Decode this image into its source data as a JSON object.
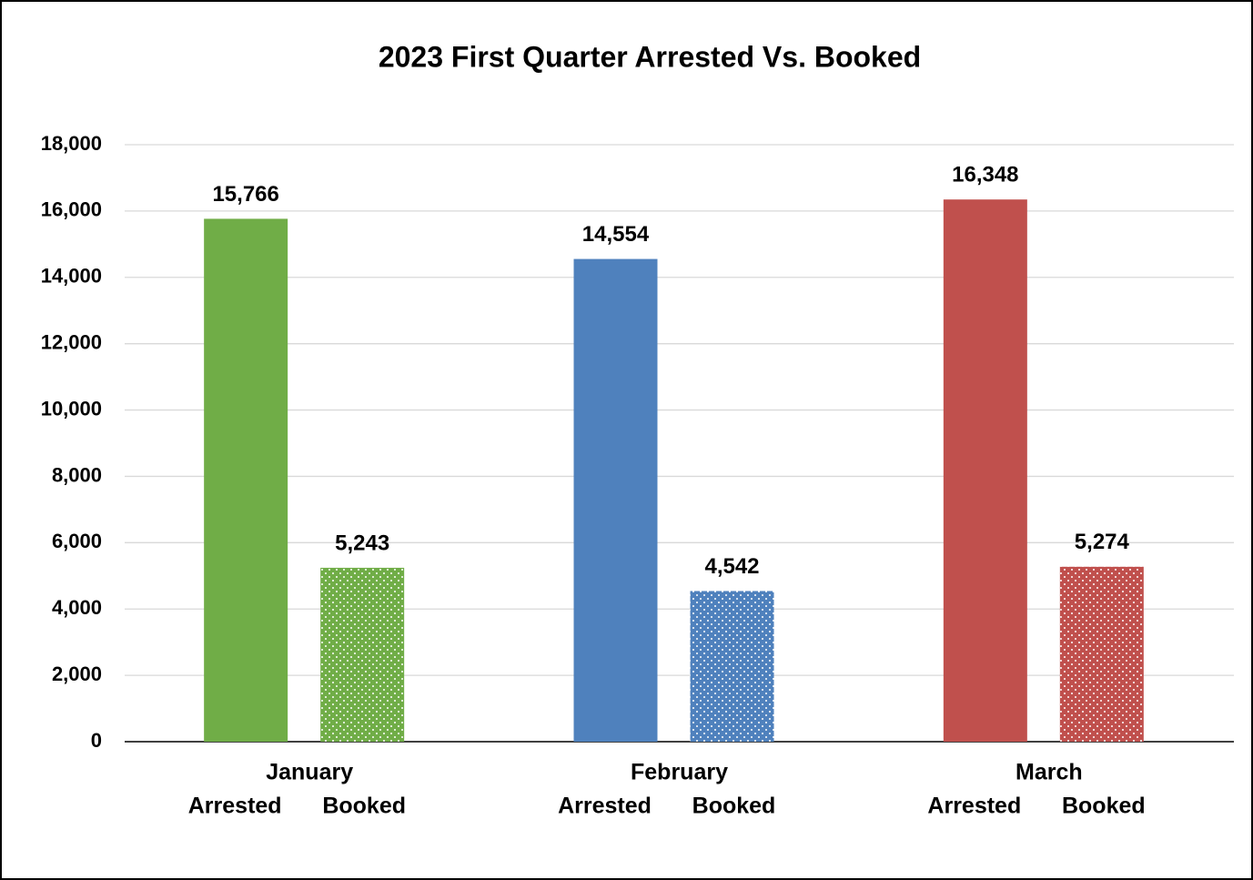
{
  "chart_data": {
    "type": "bar",
    "title": "2023 First Quarter Arrested Vs. Booked",
    "categories": [
      "January",
      "February",
      "March"
    ],
    "colors": [
      "#70ad47",
      "#4f81bd",
      "#c0504d"
    ],
    "series": [
      {
        "name": "Arrested",
        "pattern": "solid",
        "values": [
          15766,
          14554,
          16348
        ],
        "value_labels": [
          "15,766",
          "14,554",
          "16,348"
        ]
      },
      {
        "name": "Booked",
        "pattern": "dotted",
        "values": [
          5243,
          4542,
          5274
        ],
        "value_labels": [
          "5,243",
          "4,542",
          "5,274"
        ]
      }
    ],
    "ylim": [
      0,
      18000
    ],
    "yticks": [
      0,
      {
        "value": 2000,
        "label": "2,000"
      },
      {
        "value": 4000,
        "label": "4,000"
      },
      {
        "value": 6000,
        "label": "6,000"
      },
      {
        "value": 8000,
        "label": "8,000"
      },
      {
        "value": 10000,
        "label": "10,000"
      },
      {
        "value": 12000,
        "label": "12,000"
      },
      {
        "value": 14000,
        "label": "14,000"
      },
      {
        "value": 16000,
        "label": "16,000"
      },
      {
        "value": 18000,
        "label": "18,000"
      }
    ],
    "grid": true
  }
}
